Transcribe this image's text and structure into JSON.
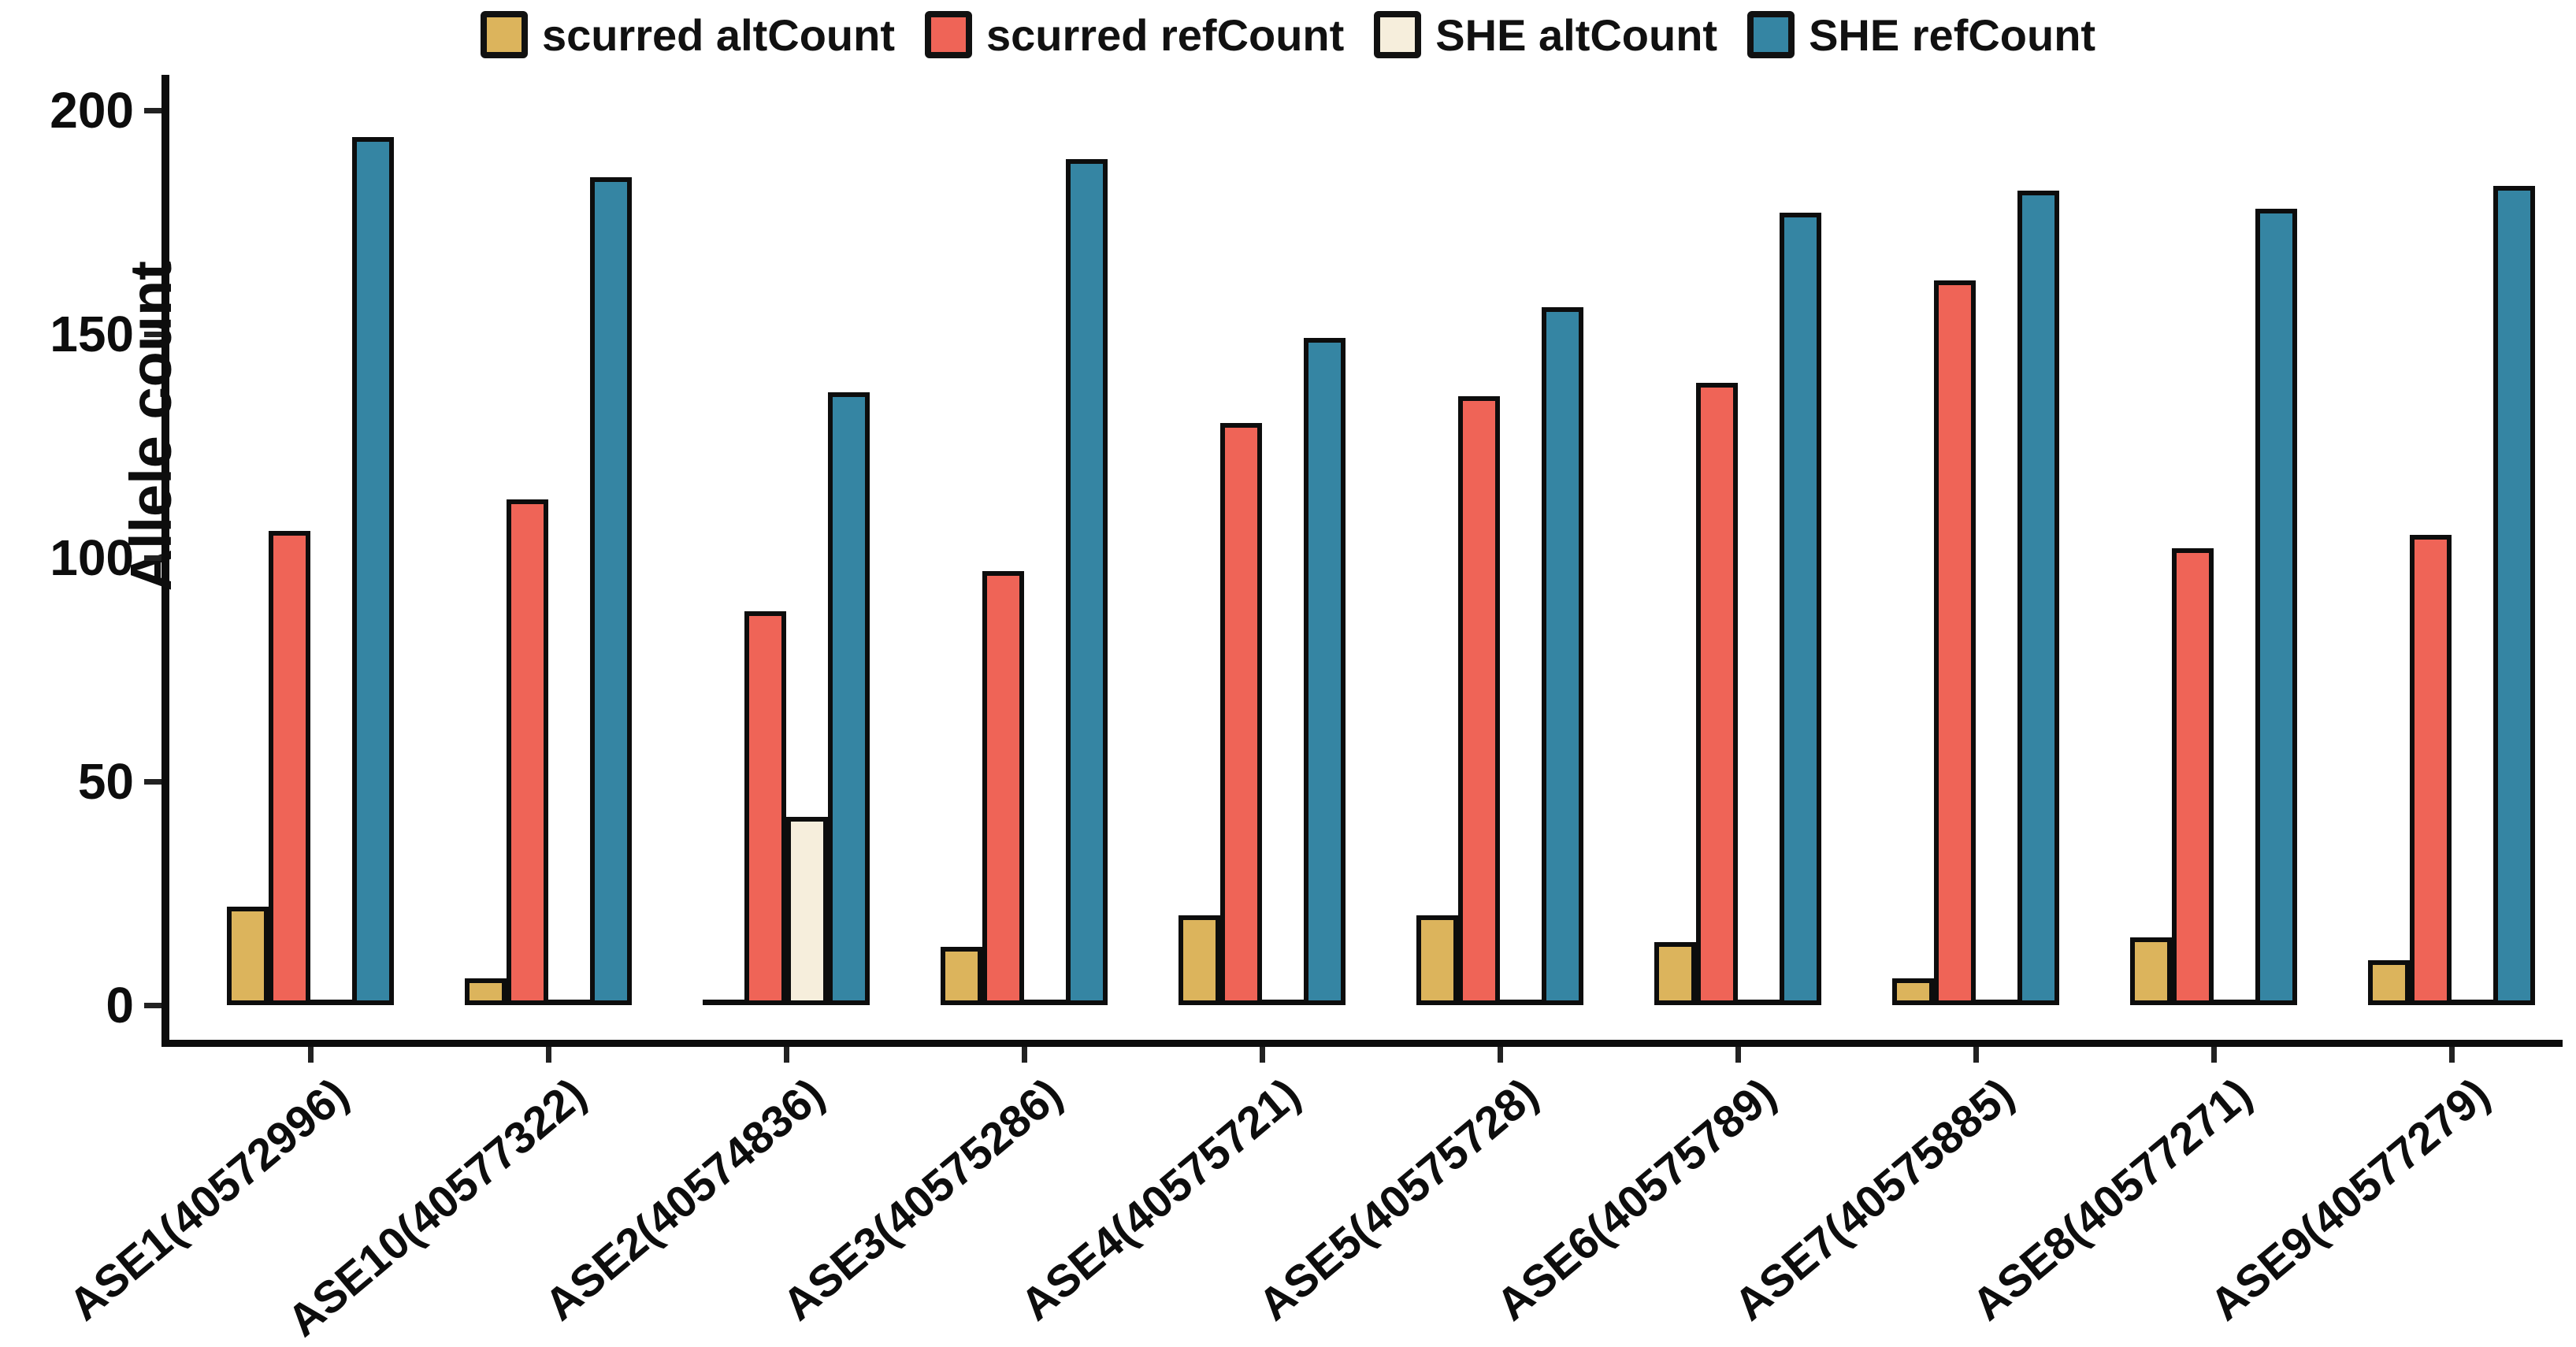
{
  "figure": {
    "y_axis_title": "Allele count"
  },
  "chart_data": {
    "type": "bar",
    "title": "",
    "xlabel": "",
    "ylabel": "Allele count",
    "ylim": [
      0,
      200
    ],
    "yticks": [
      "0",
      "50",
      "100",
      "150",
      "200"
    ],
    "grid": false,
    "legend_position": "top-center",
    "categories": [
      "ASE1(40572996)",
      "ASE10(40577322)",
      "ASE2(40574836)",
      "ASE3(40575286)",
      "ASE4(40575721)",
      "ASE5(40575728)",
      "ASE6(40575789)",
      "ASE7(40575885)",
      "ASE8(40577271)",
      "ASE9(40577279)"
    ],
    "series": [
      {
        "name": "scurred altCount",
        "color": "#DCB45C",
        "values": [
          21,
          5,
          0,
          12,
          19,
          19,
          13,
          5,
          14,
          9
        ]
      },
      {
        "name": "scurred refCount",
        "color": "#EF6457",
        "values": [
          105,
          112,
          87,
          96,
          129,
          135,
          138,
          161,
          101,
          104
        ]
      },
      {
        "name": "SHE altCount",
        "color": "#F6EEDC",
        "values": [
          0,
          0,
          41,
          0,
          0,
          0,
          0,
          0,
          0,
          0
        ]
      },
      {
        "name": "SHE refCount",
        "color": "#3585A3",
        "values": [
          193,
          184,
          136,
          188,
          148,
          155,
          176,
          181,
          177,
          182
        ]
      }
    ],
    "colors": {
      "outline": "#0d0d0d",
      "background": "#ffffff"
    }
  }
}
